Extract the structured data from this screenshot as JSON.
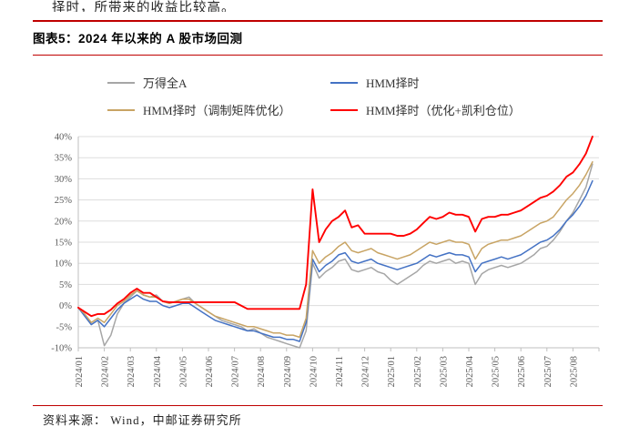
{
  "page": {
    "top_clipped_text": "择时，所带来的收益比较高。",
    "title": "图表5：2024 年以来的 A 股市场回测",
    "footer": "资料来源： Wind，中邮证券研究所",
    "accent_color": "#bf0000"
  },
  "chart_data": {
    "type": "line",
    "title": "2024 年以来的 A 股市场回测",
    "grid": "horizontal",
    "legend_position": "top",
    "ylim": [
      -10,
      40
    ],
    "y_tick_labels": [
      "40%",
      "35%",
      "30%",
      "25%",
      "20%",
      "15%",
      "10%",
      "5%",
      "0%",
      "-5%",
      "-10%"
    ],
    "x_tick_labels": [
      "2024/01",
      "2024/02",
      "2024/03",
      "2024/04",
      "2024/05",
      "2024/06",
      "2024/07",
      "2024/08",
      "2024/09",
      "2024/10",
      "2024/11",
      "2024/12",
      "2025/01",
      "2025/02",
      "2025/03",
      "2025/04",
      "2025/05",
      "2025/06",
      "2025/07",
      "2025/08"
    ],
    "series": [
      {
        "name": "万得全A",
        "color": "#a6a6a6",
        "values": [
          -0.5,
          -2.5,
          -4.5,
          -3.5,
          -9.5,
          -7,
          -2,
          0.5,
          2,
          3.5,
          2.5,
          2,
          2.5,
          1,
          0.5,
          1,
          1.5,
          2,
          0.5,
          -0.5,
          -1.5,
          -2.5,
          -3.5,
          -4,
          -4.5,
          -5,
          -6,
          -5.5,
          -6.5,
          -7.5,
          -8,
          -8.5,
          -9,
          -9.5,
          -10,
          -6,
          10,
          6.5,
          8,
          9,
          10.5,
          11,
          8.5,
          8,
          8.5,
          9,
          8,
          7.5,
          6,
          5,
          6,
          7,
          8,
          9.5,
          10.5,
          10,
          10.5,
          11,
          10,
          10.5,
          10,
          5,
          7.5,
          8.5,
          9,
          9.5,
          9,
          9.5,
          10,
          11,
          12,
          13.5,
          14,
          15.5,
          17.5,
          20,
          22,
          25,
          28,
          33.5
        ]
      },
      {
        "name": "HMM择时",
        "color": "#4472c4",
        "values": [
          -0.5,
          -2.5,
          -4.5,
          -3.5,
          -5,
          -3,
          -1,
          0.5,
          1.5,
          2.5,
          1.5,
          1,
          1,
          0,
          -0.5,
          0,
          0.5,
          0.5,
          -0.5,
          -1.5,
          -2.5,
          -3.5,
          -4,
          -4.5,
          -5,
          -5.5,
          -6,
          -6,
          -6.5,
          -7,
          -7.5,
          -7.5,
          -8,
          -8,
          -8.5,
          -4,
          11,
          8,
          9.5,
          10.5,
          12,
          12.5,
          10.5,
          10,
          10.5,
          11,
          10,
          9.5,
          9,
          8.5,
          9,
          9.5,
          10,
          11,
          12,
          11.5,
          12,
          12.5,
          12,
          12,
          11.5,
          8,
          10,
          10.5,
          11,
          11.5,
          11,
          11.5,
          12,
          13,
          14,
          15,
          15.5,
          16.5,
          18,
          20,
          21.5,
          23.5,
          26,
          29.5
        ]
      },
      {
        "name": "HMM择时（调制矩阵优化）",
        "color": "#c8a464",
        "values": [
          -0.5,
          -2,
          -4,
          -3,
          -4,
          -2,
          0,
          1,
          2.5,
          3.5,
          2.5,
          2,
          2,
          1,
          0.5,
          1,
          1.5,
          1.5,
          0.5,
          -0.5,
          -1.5,
          -2.5,
          -3,
          -3.5,
          -4,
          -4.5,
          -5,
          -5,
          -5.5,
          -6,
          -6.5,
          -6.5,
          -7,
          -7,
          -7.5,
          -3,
          13,
          10,
          11.5,
          12.5,
          14,
          15,
          13,
          12.5,
          13,
          13.5,
          12.5,
          12,
          11.5,
          11,
          11.5,
          12,
          13,
          14,
          15,
          14.5,
          15,
          15.5,
          15,
          15,
          14.5,
          11,
          13.5,
          14.5,
          15,
          15.5,
          15.5,
          16,
          16.5,
          17.5,
          18.5,
          19.5,
          20,
          21,
          23,
          25,
          26.5,
          28.5,
          31,
          34
        ]
      },
      {
        "name": "HMM择时（优化+凯利仓位）",
        "color": "#ff0000",
        "values": [
          -0.5,
          -1.5,
          -2.5,
          -2,
          -2,
          -1,
          0.5,
          1.5,
          3,
          4,
          3,
          3,
          2,
          1,
          0.8,
          0.8,
          0.8,
          0.8,
          0.8,
          0.8,
          0.8,
          0.8,
          0.8,
          0.8,
          0.8,
          0,
          -0.8,
          -0.8,
          -0.8,
          -0.8,
          -0.8,
          -0.8,
          -0.8,
          -0.8,
          -0.8,
          5,
          27.5,
          15,
          18,
          20,
          21,
          22.5,
          18.5,
          19,
          17,
          17,
          17,
          17,
          17,
          16.5,
          16.5,
          17,
          18,
          19.5,
          21,
          20.5,
          21,
          22,
          21.5,
          21.5,
          21,
          17.5,
          20.5,
          21,
          21,
          21.5,
          21.5,
          22,
          22.5,
          23.5,
          24.5,
          25.5,
          26,
          27,
          28.5,
          30.5,
          31.5,
          33.5,
          36,
          40
        ]
      }
    ]
  }
}
